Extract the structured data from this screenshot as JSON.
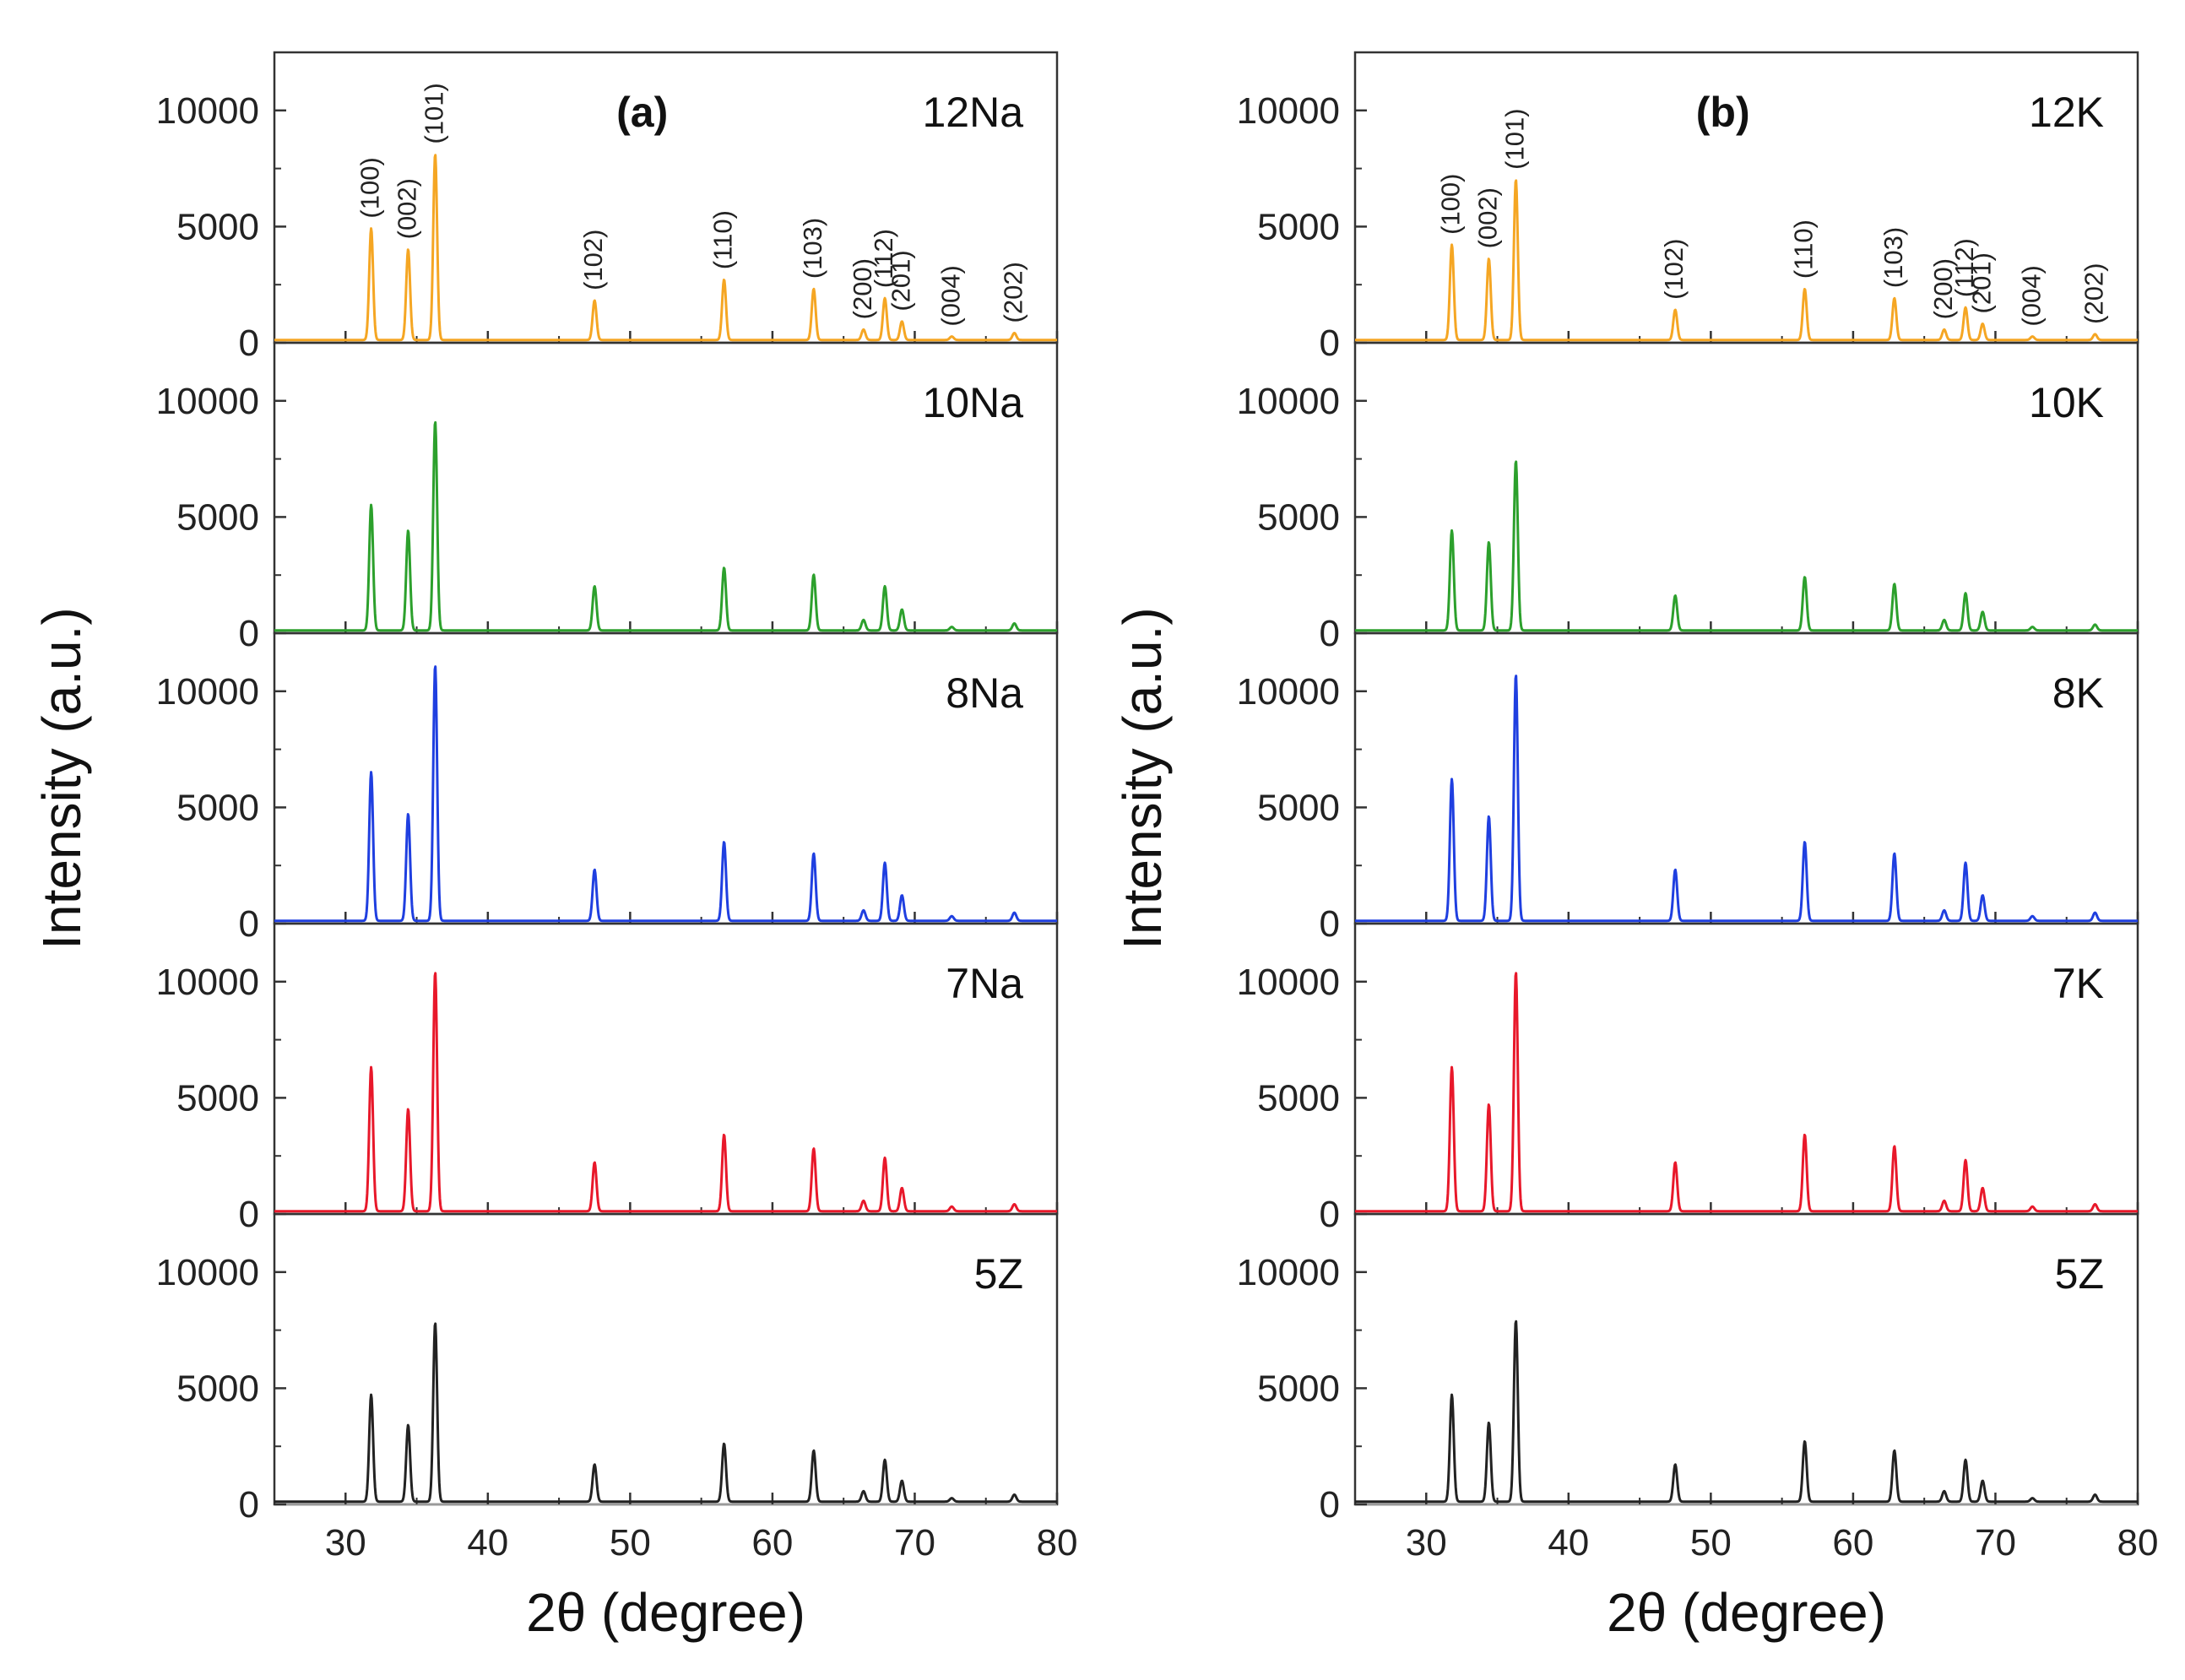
{
  "chart_data": [
    {
      "type": "line",
      "panel_label": "(a)",
      "xlabel": "2θ (degree)",
      "ylabel": "Intensity (a.u.)",
      "xlim": [
        25,
        80
      ],
      "x_ticks": [
        30,
        40,
        50,
        60,
        70,
        80
      ],
      "ylim": [
        0,
        12500
      ],
      "y_ticks": [
        0,
        5000,
        10000
      ],
      "stacked_subplots_top_to_bottom": true,
      "hkl_annotations": [
        {
          "label": "(100)",
          "x": 31.8
        },
        {
          "label": "(002)",
          "x": 34.4
        },
        {
          "label": "(101)",
          "x": 36.3
        },
        {
          "label": "(102)",
          "x": 47.5
        },
        {
          "label": "(110)",
          "x": 56.6
        },
        {
          "label": "(103)",
          "x": 62.9
        },
        {
          "label": "(200)",
          "x": 66.4
        },
        {
          "label": "(112)",
          "x": 67.9
        },
        {
          "label": "(201)",
          "x": 69.1
        },
        {
          "label": "(004)",
          "x": 72.6
        },
        {
          "label": "(202)",
          "x": 77.0
        }
      ],
      "series": [
        {
          "name": "12Na",
          "color": "#f5a623",
          "peaks": [
            [
              31.8,
              4800
            ],
            [
              34.4,
              3900
            ],
            [
              36.3,
              8000
            ],
            [
              47.5,
              1700
            ],
            [
              56.6,
              2600
            ],
            [
              62.9,
              2200
            ],
            [
              66.4,
              450
            ],
            [
              67.9,
              1800
            ],
            [
              69.1,
              800
            ],
            [
              72.6,
              150
            ],
            [
              77.0,
              300
            ]
          ]
        },
        {
          "name": "10Na",
          "color": "#2ca02c",
          "peaks": [
            [
              31.8,
              5400
            ],
            [
              34.4,
              4300
            ],
            [
              36.3,
              9000
            ],
            [
              47.5,
              1900
            ],
            [
              56.6,
              2700
            ],
            [
              62.9,
              2400
            ],
            [
              66.4,
              450
            ],
            [
              67.9,
              1900
            ],
            [
              69.1,
              900
            ],
            [
              72.6,
              150
            ],
            [
              77.0,
              300
            ]
          ]
        },
        {
          "name": "8Na",
          "color": "#1f3fe0",
          "peaks": [
            [
              31.8,
              6400
            ],
            [
              34.4,
              4600
            ],
            [
              36.3,
              11000
            ],
            [
              47.5,
              2200
            ],
            [
              56.6,
              3400
            ],
            [
              62.9,
              2900
            ],
            [
              66.4,
              450
            ],
            [
              67.9,
              2500
            ],
            [
              69.1,
              1100
            ],
            [
              72.6,
              200
            ],
            [
              77.0,
              350
            ]
          ]
        },
        {
          "name": "7Na",
          "color": "#e8182a",
          "peaks": [
            [
              31.8,
              6200
            ],
            [
              34.4,
              4400
            ],
            [
              36.3,
              10300
            ],
            [
              47.5,
              2100
            ],
            [
              56.6,
              3300
            ],
            [
              62.9,
              2700
            ],
            [
              66.4,
              450
            ],
            [
              67.9,
              2300
            ],
            [
              69.1,
              1000
            ],
            [
              72.6,
              200
            ],
            [
              77.0,
              300
            ]
          ]
        },
        {
          "name": "5Z",
          "color": "#222222",
          "peaks": [
            [
              31.8,
              4600
            ],
            [
              34.4,
              3300
            ],
            [
              36.3,
              7700
            ],
            [
              47.5,
              1600
            ],
            [
              56.6,
              2500
            ],
            [
              62.9,
              2200
            ],
            [
              66.4,
              450
            ],
            [
              67.9,
              1800
            ],
            [
              69.1,
              900
            ],
            [
              72.6,
              150
            ],
            [
              77.0,
              300
            ]
          ]
        }
      ]
    },
    {
      "type": "line",
      "panel_label": "(b)",
      "xlabel": "2θ (degree)",
      "ylabel": "Intensity (a.u.)",
      "xlim": [
        25,
        80
      ],
      "x_ticks": [
        30,
        40,
        50,
        60,
        70,
        80
      ],
      "ylim": [
        0,
        12500
      ],
      "y_ticks": [
        0,
        5000,
        10000
      ],
      "stacked_subplots_top_to_bottom": true,
      "hkl_annotations": [
        {
          "label": "(100)",
          "x": 31.8
        },
        {
          "label": "(002)",
          "x": 34.4
        },
        {
          "label": "(101)",
          "x": 36.3
        },
        {
          "label": "(102)",
          "x": 47.5
        },
        {
          "label": "(110)",
          "x": 56.6
        },
        {
          "label": "(103)",
          "x": 62.9
        },
        {
          "label": "(200)",
          "x": 66.4
        },
        {
          "label": "(112)",
          "x": 67.9
        },
        {
          "label": "(201)",
          "x": 69.1
        },
        {
          "label": "(004)",
          "x": 72.6
        },
        {
          "label": "(202)",
          "x": 77.0
        }
      ],
      "series": [
        {
          "name": "12K",
          "color": "#f5a623",
          "peaks": [
            [
              31.8,
              4100
            ],
            [
              34.4,
              3500
            ],
            [
              36.3,
              6900
            ],
            [
              47.5,
              1300
            ],
            [
              56.6,
              2200
            ],
            [
              62.9,
              1800
            ],
            [
              66.4,
              450
            ],
            [
              67.9,
              1400
            ],
            [
              69.1,
              700
            ],
            [
              72.6,
              150
            ],
            [
              77.0,
              250
            ]
          ]
        },
        {
          "name": "10K",
          "color": "#2ca02c",
          "peaks": [
            [
              31.8,
              4300
            ],
            [
              34.4,
              3800
            ],
            [
              36.3,
              7300
            ],
            [
              47.5,
              1500
            ],
            [
              56.6,
              2300
            ],
            [
              62.9,
              2000
            ],
            [
              66.4,
              450
            ],
            [
              67.9,
              1600
            ],
            [
              69.1,
              800
            ],
            [
              72.6,
              150
            ],
            [
              77.0,
              250
            ]
          ]
        },
        {
          "name": "8K",
          "color": "#1f3fe0",
          "peaks": [
            [
              31.8,
              6100
            ],
            [
              34.4,
              4500
            ],
            [
              36.3,
              10600
            ],
            [
              47.5,
              2200
            ],
            [
              56.6,
              3400
            ],
            [
              62.9,
              2900
            ],
            [
              66.4,
              450
            ],
            [
              67.9,
              2500
            ],
            [
              69.1,
              1100
            ],
            [
              72.6,
              200
            ],
            [
              77.0,
              350
            ]
          ]
        },
        {
          "name": "7K",
          "color": "#e8182a",
          "peaks": [
            [
              31.8,
              6200
            ],
            [
              34.4,
              4600
            ],
            [
              36.3,
              10300
            ],
            [
              47.5,
              2100
            ],
            [
              56.6,
              3300
            ],
            [
              62.9,
              2800
            ],
            [
              66.4,
              450
            ],
            [
              67.9,
              2200
            ],
            [
              69.1,
              1000
            ],
            [
              72.6,
              200
            ],
            [
              77.0,
              300
            ]
          ]
        },
        {
          "name": "5Z",
          "color": "#222222",
          "peaks": [
            [
              31.8,
              4600
            ],
            [
              34.4,
              3400
            ],
            [
              36.3,
              7800
            ],
            [
              47.5,
              1600
            ],
            [
              56.6,
              2600
            ],
            [
              62.9,
              2200
            ],
            [
              66.4,
              450
            ],
            [
              67.9,
              1800
            ],
            [
              69.1,
              900
            ],
            [
              72.6,
              150
            ],
            [
              77.0,
              300
            ]
          ]
        }
      ]
    }
  ]
}
